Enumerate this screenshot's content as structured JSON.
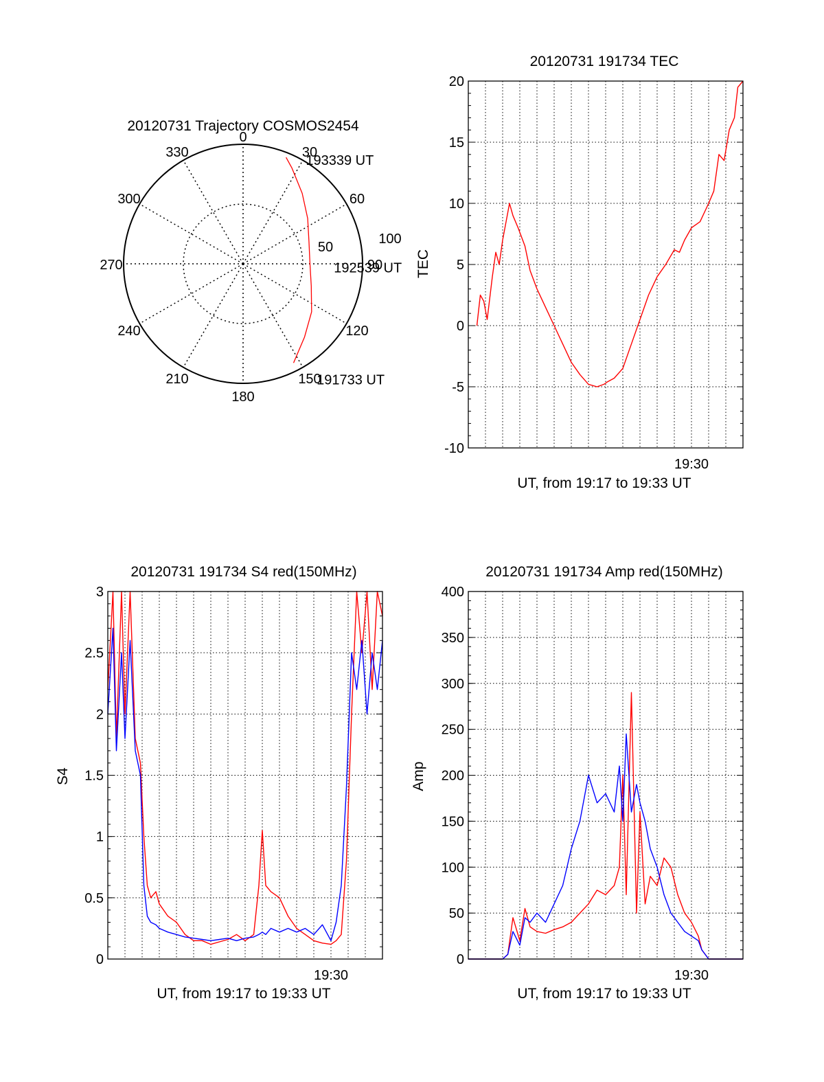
{
  "chart_data": [
    {
      "type": "polar",
      "title": "20120731 Trajectory COSMOS2454",
      "angle_labels": [
        "0",
        "30",
        "60",
        "90",
        "120",
        "150",
        "180",
        "210",
        "240",
        "270",
        "300",
        "330"
      ],
      "radius_labels": [
        "50",
        "100"
      ],
      "series": [
        {
          "color": "#ff0000",
          "points": [
            {
              "azimuth": 153,
              "zenith": 93
            },
            {
              "azimuth": 140,
              "zenith": 80
            },
            {
              "azimuth": 125,
              "zenith": 70
            },
            {
              "azimuth": 108,
              "zenith": 60
            },
            {
              "azimuth": 90,
              "zenith": 56
            },
            {
              "azimuth": 72,
              "zenith": 58
            },
            {
              "azimuth": 55,
              "zenith": 66
            },
            {
              "azimuth": 40,
              "zenith": 77
            },
            {
              "azimuth": 27,
              "zenith": 90
            },
            {
              "azimuth": 22,
              "zenith": 96
            }
          ]
        }
      ],
      "annotations": [
        {
          "text": "193339 UT",
          "azimuth": 28,
          "zenith": 99
        },
        {
          "text": "192539 UT",
          "azimuth": 92,
          "zenith": 70
        },
        {
          "text": "191733 UT",
          "azimuth": 150,
          "zenith": 111
        }
      ]
    },
    {
      "type": "line",
      "title": "20120731 191734 TEC",
      "xlabel": "UT, from 19:17 to 19:33 UT",
      "ylabel": "TEC",
      "xlim": [
        0,
        16
      ],
      "ylim": [
        -10,
        20
      ],
      "yticks": [
        -10,
        -5,
        0,
        5,
        10,
        15,
        20
      ],
      "xtick_labels": [
        {
          "value": 13,
          "label": "19:30"
        }
      ],
      "grid": true,
      "series": [
        {
          "color": "#ff0000",
          "x": [
            0.5,
            0.7,
            0.9,
            1.1,
            1.4,
            1.6,
            1.8,
            2.0,
            2.2,
            2.4,
            2.6,
            2.9,
            3.3,
            3.6,
            4.0,
            4.5,
            5.0,
            5.5,
            6.0,
            6.5,
            7.0,
            7.5,
            7.9,
            8.1,
            8.5,
            9.0,
            9.5,
            10.0,
            10.5,
            11.0,
            11.5,
            12.0,
            12.3,
            12.6,
            13.0,
            13.5,
            14.0,
            14.3,
            14.6,
            14.9,
            15.2,
            15.5,
            15.7,
            16.0
          ],
          "y": [
            0,
            2.5,
            2.0,
            0.5,
            4.0,
            6.0,
            5.0,
            7.0,
            8.5,
            10.0,
            9.0,
            8.0,
            6.5,
            4.5,
            3.0,
            1.5,
            0.0,
            -1.5,
            -3.0,
            -4.0,
            -4.8,
            -5.0,
            -4.8,
            -4.6,
            -4.3,
            -3.5,
            -1.5,
            0.5,
            2.5,
            4.0,
            5.0,
            6.2,
            6.0,
            7.0,
            8.0,
            8.5,
            10.0,
            11.0,
            14.0,
            13.5,
            16.0,
            17.0,
            19.5,
            20.0
          ]
        }
      ]
    },
    {
      "type": "line",
      "title": "20120731 191734 S4 red(150MHz)",
      "xlabel": "UT, from 19:17 to 19:33 UT",
      "ylabel": "S4",
      "xlim": [
        0,
        16
      ],
      "ylim": [
        0,
        3
      ],
      "yticks": [
        0,
        0.5,
        1,
        1.5,
        2,
        2.5,
        3
      ],
      "ytick_labels": [
        "0",
        "0.5",
        "1",
        "1.5",
        "2",
        "2.5",
        "3"
      ],
      "xtick_labels": [
        {
          "value": 13,
          "label": "19:30"
        }
      ],
      "grid": true,
      "series": [
        {
          "color": "#ff0000",
          "x": [
            0.0,
            0.3,
            0.5,
            0.8,
            1.0,
            1.3,
            1.6,
            1.9,
            2.1,
            2.3,
            2.5,
            2.8,
            3.0,
            3.5,
            4.0,
            4.5,
            5.0,
            5.5,
            6.0,
            6.5,
            7.0,
            7.5,
            8.0,
            8.5,
            8.8,
            9.0,
            9.2,
            9.5,
            10.0,
            10.5,
            11.0,
            11.5,
            12.0,
            12.5,
            13.0,
            13.3,
            13.6,
            13.9,
            14.2,
            14.5,
            14.8,
            15.1,
            15.4,
            15.7,
            16.0
          ],
          "y": [
            2.2,
            3.0,
            1.8,
            3.0,
            2.0,
            3.0,
            1.8,
            1.6,
            1.0,
            0.6,
            0.5,
            0.55,
            0.45,
            0.35,
            0.3,
            0.2,
            0.15,
            0.15,
            0.12,
            0.14,
            0.16,
            0.2,
            0.15,
            0.2,
            0.6,
            1.05,
            0.6,
            0.55,
            0.5,
            0.35,
            0.25,
            0.2,
            0.15,
            0.13,
            0.12,
            0.15,
            0.2,
            0.8,
            2.0,
            3.0,
            2.5,
            3.0,
            2.2,
            3.0,
            2.8
          ]
        },
        {
          "color": "#0000ff",
          "x": [
            0.0,
            0.3,
            0.5,
            0.8,
            1.0,
            1.3,
            1.6,
            1.9,
            2.1,
            2.3,
            2.5,
            2.8,
            3.0,
            3.5,
            4.0,
            4.5,
            5.0,
            5.5,
            6.0,
            6.5,
            7.0,
            7.5,
            8.0,
            8.5,
            8.8,
            9.0,
            9.2,
            9.5,
            10.0,
            10.5,
            11.0,
            11.5,
            12.0,
            12.5,
            13.0,
            13.3,
            13.6,
            13.9,
            14.2,
            14.5,
            14.8,
            15.1,
            15.4,
            15.7,
            16.0
          ],
          "y": [
            2.0,
            2.7,
            1.7,
            2.5,
            1.8,
            2.6,
            1.7,
            1.5,
            0.6,
            0.35,
            0.3,
            0.28,
            0.25,
            0.22,
            0.2,
            0.18,
            0.17,
            0.16,
            0.15,
            0.16,
            0.17,
            0.15,
            0.17,
            0.18,
            0.2,
            0.22,
            0.2,
            0.25,
            0.22,
            0.25,
            0.22,
            0.25,
            0.2,
            0.28,
            0.15,
            0.3,
            0.6,
            1.4,
            2.5,
            2.2,
            2.6,
            2.0,
            2.5,
            2.2,
            2.6
          ]
        }
      ]
    },
    {
      "type": "line",
      "title": "20120731 191734 Amp red(150MHz)",
      "xlabel": "UT, from 19:17 to 19:33 UT",
      "ylabel": "Amp",
      "xlim": [
        0,
        16
      ],
      "ylim": [
        0,
        400
      ],
      "yticks": [
        0,
        50,
        100,
        150,
        200,
        250,
        300,
        350,
        400
      ],
      "xtick_labels": [
        {
          "value": 13,
          "label": "19:30"
        }
      ],
      "grid": true,
      "series": [
        {
          "color": "#ff0000",
          "x": [
            0.0,
            1.0,
            2.0,
            2.3,
            2.6,
            3.0,
            3.3,
            3.6,
            4.0,
            4.5,
            5.0,
            5.5,
            6.0,
            6.5,
            7.0,
            7.5,
            8.0,
            8.5,
            8.8,
            9.0,
            9.2,
            9.5,
            9.8,
            10.0,
            10.3,
            10.6,
            11.0,
            11.4,
            11.8,
            12.2,
            12.6,
            13.0,
            13.4,
            13.6,
            14.0,
            15.0,
            16.0
          ],
          "y": [
            0,
            0,
            0,
            5,
            45,
            20,
            55,
            35,
            30,
            28,
            32,
            35,
            40,
            50,
            60,
            75,
            70,
            80,
            100,
            200,
            70,
            290,
            50,
            160,
            60,
            90,
            80,
            110,
            100,
            70,
            50,
            40,
            25,
            10,
            0,
            0,
            0
          ]
        },
        {
          "color": "#0000ff",
          "x": [
            0.0,
            1.0,
            2.0,
            2.3,
            2.6,
            3.0,
            3.3,
            3.6,
            4.0,
            4.5,
            5.0,
            5.5,
            6.0,
            6.5,
            7.0,
            7.5,
            8.0,
            8.5,
            8.8,
            9.0,
            9.2,
            9.5,
            9.8,
            10.0,
            10.3,
            10.6,
            11.0,
            11.4,
            11.8,
            12.2,
            12.6,
            13.0,
            13.4,
            13.6,
            14.0,
            15.0,
            16.0
          ],
          "y": [
            0,
            0,
            0,
            5,
            30,
            15,
            45,
            40,
            50,
            40,
            60,
            80,
            120,
            150,
            200,
            170,
            180,
            160,
            210,
            150,
            245,
            160,
            190,
            170,
            150,
            120,
            100,
            70,
            50,
            40,
            30,
            25,
            20,
            10,
            0,
            0,
            0
          ]
        }
      ]
    }
  ]
}
